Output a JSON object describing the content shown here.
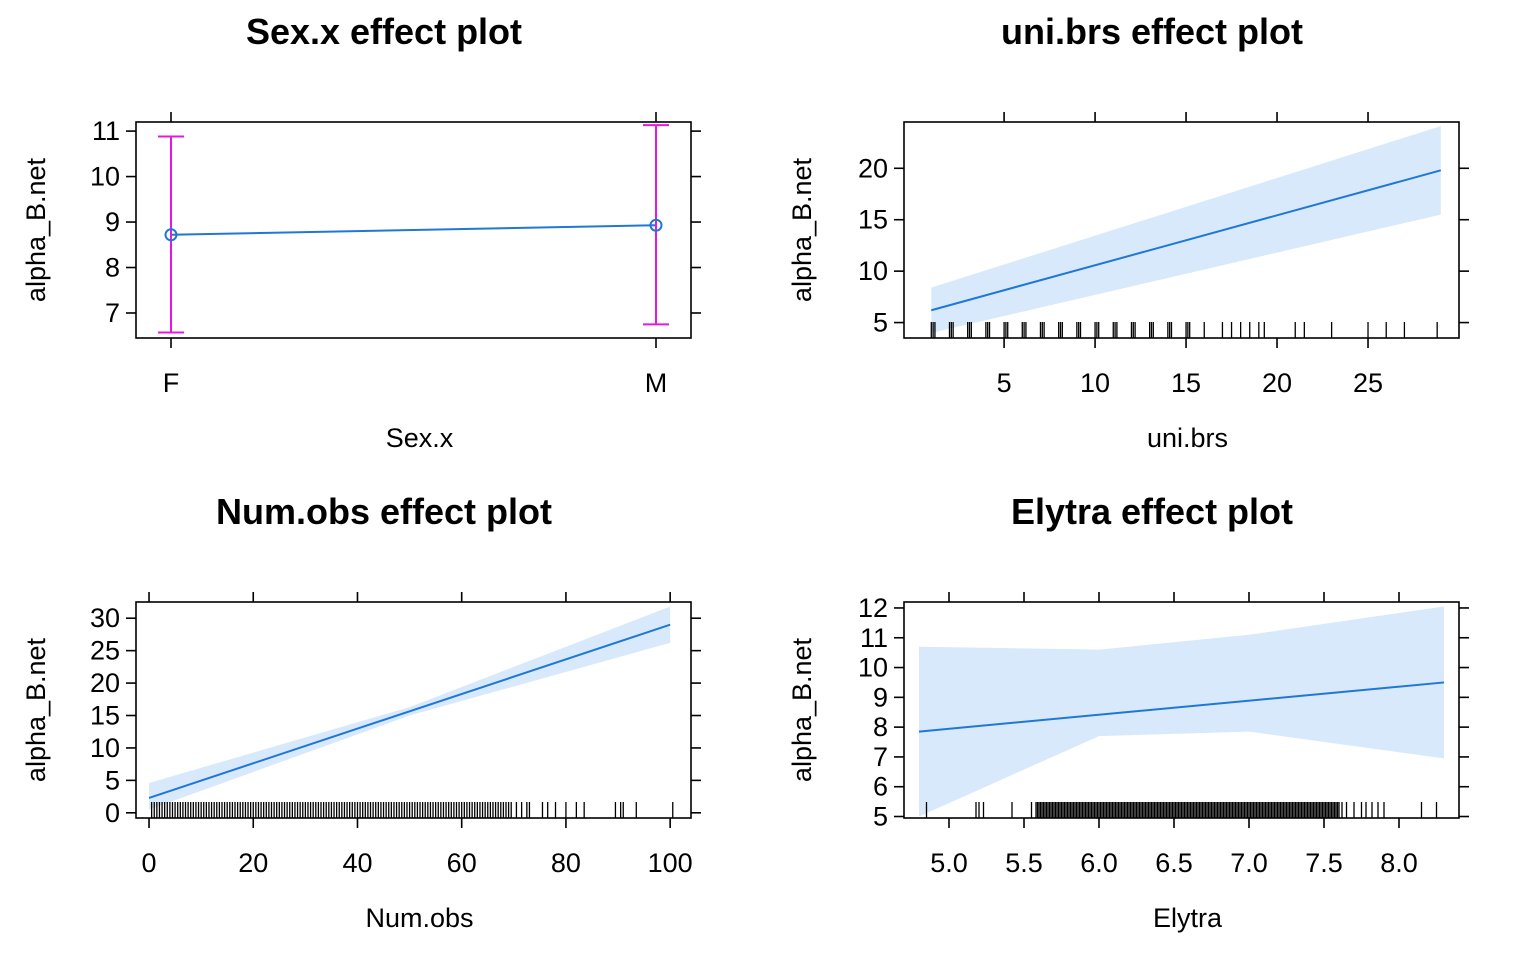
{
  "chart_data": [
    {
      "type": "line",
      "title": "Sex.x effect plot",
      "xlabel": "Sex.x",
      "ylabel": "alpha_B.net",
      "x_scale": "categorical",
      "categories": [
        "F",
        "M"
      ],
      "ylim": [
        6.45,
        11.2
      ],
      "yticks": [
        "7",
        "8",
        "9",
        "10",
        "11"
      ],
      "estimate": [
        8.72,
        8.93
      ],
      "lower": [
        6.57,
        6.75
      ],
      "upper": [
        10.88,
        11.13
      ],
      "colors": {
        "line": "#1f78d6",
        "errorbar": "#e418e2"
      }
    },
    {
      "type": "line",
      "title": "uni.brs effect plot",
      "xlabel": "uni.brs",
      "ylabel": "alpha_B.net",
      "xlim": [
        -0.5,
        30
      ],
      "ylim": [
        3.5,
        24.5
      ],
      "xticks": [
        "5",
        "10",
        "15",
        "20",
        "25"
      ],
      "yticks": [
        "5",
        "10",
        "15",
        "20"
      ],
      "fit": {
        "x": [
          1,
          29
        ],
        "y": [
          6.2,
          19.8
        ]
      },
      "band_lower": {
        "x": [
          1,
          29
        ],
        "y": [
          4.0,
          15.5
        ]
      },
      "band_upper": {
        "x": [
          1,
          29
        ],
        "y": [
          8.4,
          24.1
        ]
      },
      "rug": [
        1,
        1.1,
        1.2,
        2,
        2.1,
        2.2,
        3,
        3.1,
        3.2,
        4,
        4.1,
        4.2,
        5,
        5.1,
        5.2,
        6,
        6.1,
        6.2,
        7,
        7.1,
        7.2,
        8,
        8.1,
        8.2,
        9,
        9.1,
        9.2,
        10,
        10.1,
        10.2,
        11,
        11.1,
        11.2,
        12,
        12.1,
        12.2,
        13,
        13.1,
        13.2,
        14,
        14.1,
        14.2,
        15,
        15.1,
        15.2,
        16,
        17,
        17.5,
        18,
        18.5,
        19,
        19.3,
        21,
        21.5,
        23,
        25,
        26,
        27,
        28.8
      ],
      "colors": {
        "line": "#1f78d6",
        "band": "#d8e9fc",
        "rug": "#000000"
      }
    },
    {
      "type": "line",
      "title": "Num.obs effect plot",
      "xlabel": "Num.obs",
      "ylabel": "alpha_B.net",
      "xlim": [
        -2.5,
        104
      ],
      "ylim": [
        -0.8,
        32.5
      ],
      "xticks": [
        "0",
        "20",
        "40",
        "60",
        "80",
        "100"
      ],
      "yticks": [
        "0",
        "5",
        "10",
        "15",
        "20",
        "25",
        "30"
      ],
      "fit": {
        "x": [
          0,
          100
        ],
        "y": [
          2.3,
          29.0
        ]
      },
      "band_lower": {
        "x": [
          0,
          50,
          100
        ],
        "y": [
          0.5,
          15.0,
          26.2
        ]
      },
      "band_upper": {
        "x": [
          0,
          50,
          100
        ],
        "y": [
          4.6,
          16.3,
          31.8
        ]
      },
      "rug_step": 0.5,
      "rug_range": [
        0.5,
        69
      ],
      "rug_extra": [
        69.5,
        70.5,
        71.5,
        72.5,
        73,
        75.5,
        76.5,
        78,
        80,
        82,
        83.5,
        89.5,
        90.5,
        91,
        93.5,
        100.5
      ],
      "colors": {
        "line": "#1f78d6",
        "band": "#d8e9fc",
        "rug": "#000000"
      }
    },
    {
      "type": "line",
      "title": "Elytra effect plot",
      "xlabel": "Elytra",
      "ylabel": "alpha_B.net",
      "xlim": [
        4.7,
        8.4
      ],
      "ylim": [
        4.95,
        12.2
      ],
      "xticks": [
        "5.0",
        "5.5",
        "6.0",
        "6.5",
        "7.0",
        "7.5",
        "8.0"
      ],
      "yticks": [
        "5",
        "6",
        "7",
        "8",
        "9",
        "10",
        "11",
        "12"
      ],
      "fit": {
        "x": [
          4.8,
          8.3
        ],
        "y": [
          7.85,
          9.5
        ]
      },
      "band_lower": {
        "x": [
          4.8,
          6.0,
          7.0,
          8.3
        ],
        "y": [
          5.0,
          7.7,
          7.85,
          6.95
        ]
      },
      "band_upper": {
        "x": [
          4.8,
          6.0,
          7.0,
          8.3
        ],
        "y": [
          10.7,
          10.6,
          11.1,
          12.05
        ]
      },
      "rug_step": 0.01,
      "rug_range": [
        5.58,
        7.6
      ],
      "rug_extra": [
        4.85,
        5.18,
        5.2,
        5.23,
        5.42,
        5.55,
        7.62,
        7.65,
        7.7,
        7.75,
        7.78,
        7.82,
        7.86,
        7.9,
        8.15,
        8.25
      ],
      "colors": {
        "line": "#1f78d6",
        "band": "#d8e9fc",
        "rug": "#000000"
      }
    }
  ]
}
